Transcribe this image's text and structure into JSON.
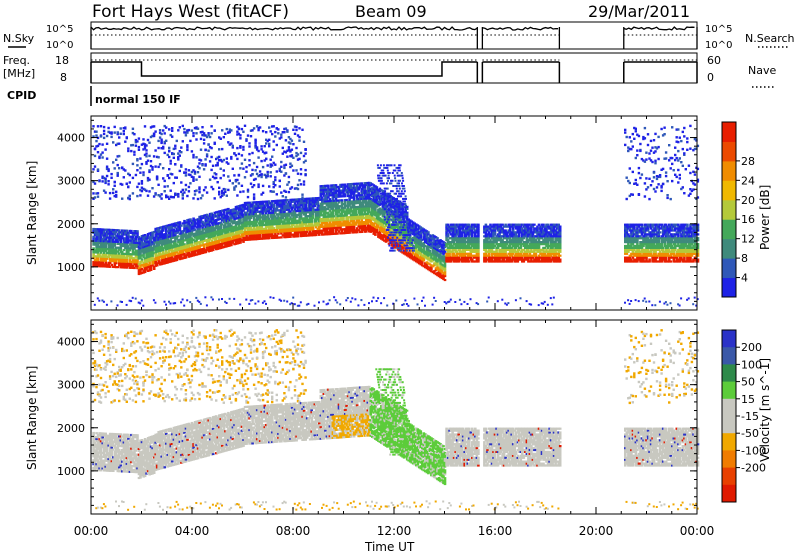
{
  "header": {
    "station": "Fort Hays West (fitACF)",
    "beam": "Beam 09",
    "date": "29/Mar/2011"
  },
  "panels": {
    "nsky_label": "N.Sky",
    "nsearch_label": "N.Search",
    "nsky_ticks": [
      "10^5",
      "10^0"
    ],
    "freq_label_line1": "Freq.",
    "freq_label_line2": "[MHz]",
    "freq_ticks": [
      "18",
      "8"
    ],
    "nave_label": "Nave",
    "nave_ticks": [
      "60",
      "0"
    ],
    "cpid_label": "CPID",
    "cpid_value": "normal 150 IF"
  },
  "chart_data": [
    {
      "type": "heatmap",
      "name": "power",
      "ylabel": "Slant Range [km]",
      "yticks": [
        1000,
        2000,
        3000,
        4000
      ],
      "ylim": [
        0,
        4500
      ],
      "xlim": [
        0,
        24
      ],
      "colorbar": {
        "label": "Power [dB]",
        "ticks": [
          "4",
          "8",
          "12",
          "16",
          "20",
          "24",
          "28"
        ],
        "colors": [
          "#1e22e6",
          "#2f58b8",
          "#3f8a7c",
          "#44a85a",
          "#b4c93a",
          "#f0b800",
          "#f08c00",
          "#ec4a00",
          "#e81e00"
        ]
      },
      "gaps_hours": [
        [
          18.55,
          21.1
        ]
      ]
    },
    {
      "type": "heatmap",
      "name": "velocity",
      "ylabel": "Slant Range [km]",
      "yticks": [
        1000,
        2000,
        3000,
        4000
      ],
      "ylim": [
        0,
        4500
      ],
      "xlim": [
        0,
        24
      ],
      "xlabel": "Time UT",
      "xticks": [
        "00:00",
        "04:00",
        "08:00",
        "12:00",
        "16:00",
        "20:00",
        "00:00"
      ],
      "colorbar": {
        "label": "Velocity [m s^-1]",
        "ticks": [
          "200",
          "100",
          "50",
          "15",
          "-15",
          "-50",
          "-100",
          "-200"
        ],
        "colors": [
          "#2a32c8",
          "#3a58a8",
          "#2e8a4a",
          "#5ccc3a",
          "#c8c8c0",
          "#c8c8c0",
          "#f0a800",
          "#f07c00",
          "#e84000",
          "#e01a00"
        ]
      }
    }
  ]
}
